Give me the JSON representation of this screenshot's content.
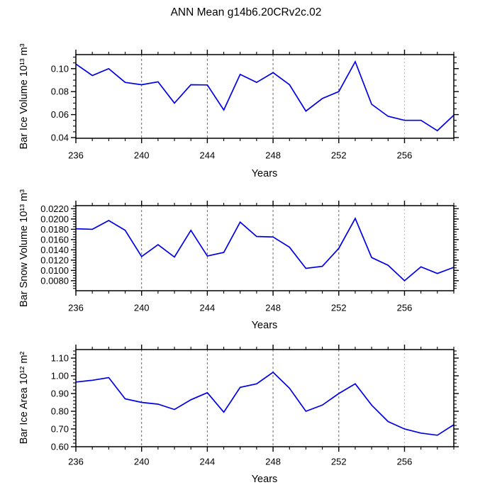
{
  "title": "ANN Mean g14b6.20CRv2c.02",
  "x_axis": {
    "label": "Years",
    "range": [
      236,
      259
    ],
    "major_ticks": [
      236,
      240,
      244,
      248,
      252,
      256
    ],
    "minor_step": 1,
    "gridlines": [
      240,
      244,
      248,
      252
    ],
    "gridlines_light": [
      256
    ]
  },
  "colors": {
    "line": "#0000e8",
    "axis": "#000000",
    "grid": "#666666",
    "grid_light": "#bcbcbc",
    "background": "#ffffff",
    "text": "#000000"
  },
  "chart_data": [
    {
      "type": "line",
      "name": "bar-ice-volume",
      "ylabel": "Bar Ice Volume 10¹³ m³",
      "x": [
        236,
        237,
        238,
        239,
        240,
        241,
        242,
        243,
        244,
        245,
        246,
        247,
        248,
        249,
        250,
        251,
        252,
        253,
        254,
        255,
        256,
        257,
        258,
        259
      ],
      "values": [
        0.104,
        0.094,
        0.1,
        0.088,
        0.086,
        0.0885,
        0.07,
        0.086,
        0.0858,
        0.064,
        0.095,
        0.088,
        0.0965,
        0.086,
        0.063,
        0.074,
        0.08,
        0.106,
        0.069,
        0.0585,
        0.055,
        0.055,
        0.046,
        0.0595
      ],
      "ylim": [
        0.0394,
        0.1122
      ],
      "yticks": [
        0.04,
        0.06,
        0.08,
        0.1
      ],
      "ytick_decimals": 2,
      "yminor_step": 0.005
    },
    {
      "type": "line",
      "name": "bar-snow-volume",
      "ylabel": "Bar Snow Volume 10¹³ m³",
      "x": [
        236,
        237,
        238,
        239,
        240,
        241,
        242,
        243,
        244,
        245,
        246,
        247,
        248,
        249,
        250,
        251,
        252,
        253,
        254,
        255,
        256,
        257,
        258,
        259
      ],
      "values": [
        0.0181,
        0.018,
        0.0197,
        0.0178,
        0.0127,
        0.015,
        0.0126,
        0.0178,
        0.0128,
        0.0135,
        0.0194,
        0.0166,
        0.0165,
        0.0145,
        0.0104,
        0.0108,
        0.0143,
        0.0201,
        0.0125,
        0.011,
        0.008,
        0.0107,
        0.0094,
        0.0106
      ],
      "ylim": [
        0.00605,
        0.0226
      ],
      "yticks": [
        0.008,
        0.01,
        0.012,
        0.014,
        0.016,
        0.018,
        0.02,
        0.022
      ],
      "ytick_decimals": 4,
      "yminor_step": 0.0005
    },
    {
      "type": "line",
      "name": "bar-ice-area",
      "ylabel": "Bar Ice Area 10¹² m²",
      "x": [
        236,
        237,
        238,
        239,
        240,
        241,
        242,
        243,
        244,
        245,
        246,
        247,
        248,
        249,
        250,
        251,
        252,
        253,
        254,
        255,
        256,
        257,
        258,
        259
      ],
      "values": [
        0.965,
        0.975,
        0.99,
        0.87,
        0.85,
        0.84,
        0.81,
        0.865,
        0.905,
        0.795,
        0.935,
        0.955,
        1.02,
        0.93,
        0.8,
        0.835,
        0.9,
        0.955,
        0.835,
        0.742,
        0.7,
        0.677,
        0.665,
        0.724
      ],
      "ylim": [
        0.6,
        1.148
      ],
      "yticks": [
        0.6,
        0.7,
        0.8,
        0.9,
        1.0,
        1.1
      ],
      "ytick_decimals": 2,
      "yminor_step": 0.02
    }
  ]
}
